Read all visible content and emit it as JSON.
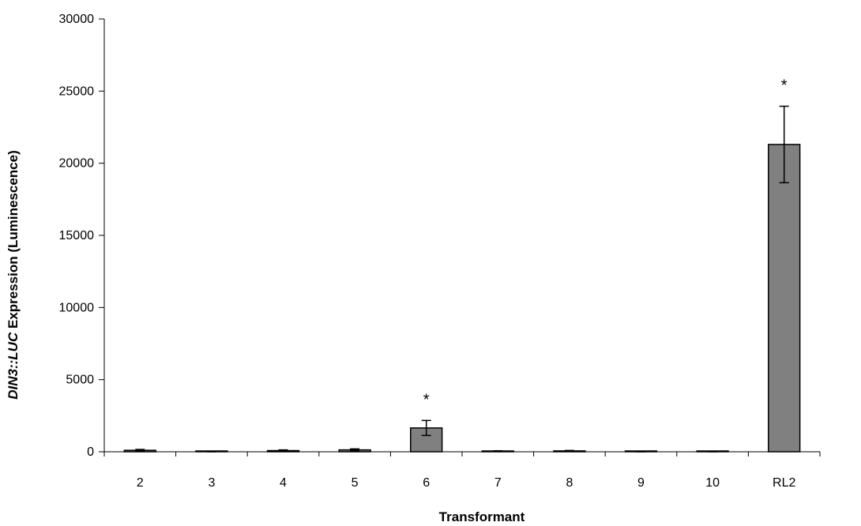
{
  "chart_data": {
    "type": "bar",
    "categories": [
      "2",
      "3",
      "4",
      "5",
      "6",
      "7",
      "8",
      "9",
      "10",
      "RL2"
    ],
    "values": [
      100,
      20,
      80,
      130,
      1650,
      40,
      60,
      5,
      10,
      21300
    ],
    "errors": [
      60,
      20,
      50,
      70,
      520,
      30,
      30,
      5,
      10,
      2650
    ],
    "significance": [
      "",
      "",
      "",
      "",
      "*",
      "",
      "",
      "",
      "",
      "*"
    ],
    "xlabel": "Transformant",
    "ylabel_italic": "DIN3::LUC",
    "ylabel_rest": " Expression (Luminescence)",
    "ylim": [
      0,
      30000
    ],
    "yticks": [
      "0",
      "5000",
      "10000",
      "15000",
      "20000",
      "25000",
      "30000"
    ],
    "ytick_values": [
      0,
      5000,
      10000,
      15000,
      20000,
      25000,
      30000
    ],
    "bar_color": "#808080",
    "grid": false,
    "legend": "none"
  }
}
